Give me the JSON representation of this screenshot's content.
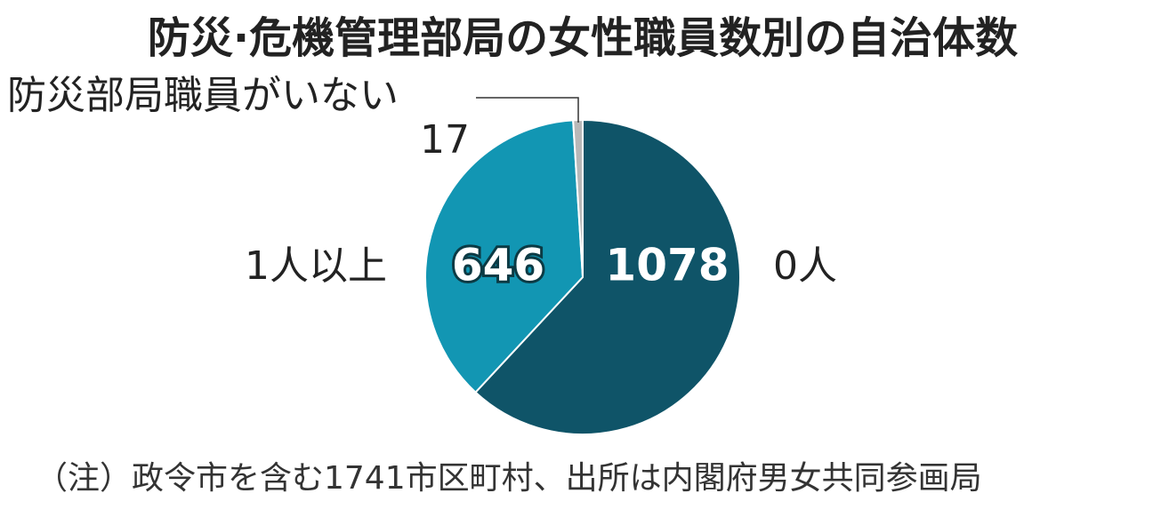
{
  "chart_data": {
    "type": "pie",
    "title": "防災·危機管理部局の女性職員数別の自治体数",
    "categories": [
      "0人",
      "1人以上",
      "防災部局職員がいない"
    ],
    "values": [
      1078,
      646,
      17
    ],
    "colors": [
      "#0f5468",
      "#1296b3",
      "#b8b8b8"
    ],
    "note": "（注）政令市を含む1741市区町村、出所は内閣府男女共同参画局"
  }
}
